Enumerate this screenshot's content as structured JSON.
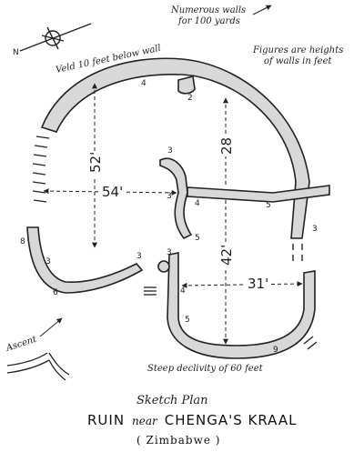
{
  "notes": {
    "numerous_walls": "Numerous walls",
    "for_yards": "for 100 yards",
    "veld": "Veld 10 feet below wall",
    "figures_line1": "Figures are heights",
    "figures_line2": "of walls in feet",
    "ascent": "Ascent",
    "steep": "Steep declivity of 60 feet"
  },
  "compass": {
    "north_label": "N"
  },
  "dimensions": {
    "d52": "52'",
    "d54": "54'",
    "d28": "28",
    "d42": "42'",
    "d31": "31'"
  },
  "wall_heights": {
    "h_top": "4",
    "h_tower": "2",
    "h_inner_top": "3",
    "h_inner_3b": "3",
    "h_inner_5b": "5",
    "h_inner_4": "4",
    "h_mid_5": "5",
    "h_right_3": "3",
    "h_left_8": "8",
    "h_left_3": "3",
    "h_left_6": "6",
    "h_left_3b": "3",
    "h_low_3": "3",
    "h_low_4": "4",
    "h_low_5": "5",
    "h_low_9": "9"
  },
  "title": {
    "line1": "Sketch Plan",
    "line2_a": "RUIN",
    "line2_b": "near",
    "line2_c": "CHENGA'S KRAAL",
    "line3": "( Zimbabwe )"
  }
}
